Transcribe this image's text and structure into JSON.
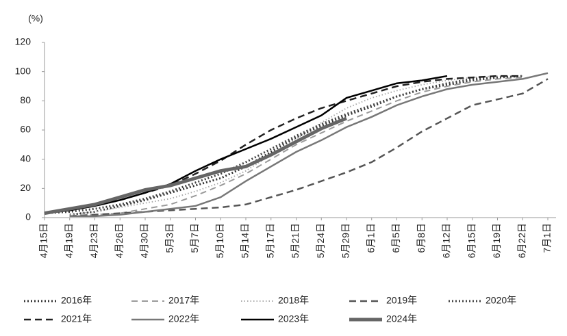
{
  "chart_data": {
    "type": "line",
    "y_label": "(%)",
    "categories": [
      "4月15日",
      "4月19日",
      "4月23日",
      "4月26日",
      "4月30日",
      "5月3日",
      "5月7日",
      "5月10日",
      "5月14日",
      "5月17日",
      "5月21日",
      "5月24日",
      "5月29日",
      "6月1日",
      "6月5日",
      "6月8日",
      "6月12日",
      "6月15日",
      "6月19日",
      "6月22日",
      "7月1日"
    ],
    "ylim": [
      0,
      120
    ],
    "yticks": [
      0,
      20,
      40,
      60,
      80,
      100,
      120
    ],
    "series": [
      {
        "name": "2016年",
        "color": "#333333",
        "dash": "2 3",
        "width": 3,
        "values": [
          null,
          2,
          4,
          8,
          12,
          17,
          22,
          27,
          35,
          45,
          55,
          63,
          70,
          76,
          83,
          88,
          91,
          94,
          96,
          null,
          null
        ]
      },
      {
        "name": "2017年",
        "color": "#9a9a9a",
        "dash": "9 6",
        "width": 2,
        "values": [
          null,
          1,
          2,
          3,
          6,
          9,
          15,
          22,
          30,
          40,
          50,
          58,
          66,
          73,
          80,
          86,
          90,
          93,
          95,
          96,
          null
        ]
      },
      {
        "name": "2018年",
        "color": "#aaaaaa",
        "dash": "1.5 3",
        "width": 2,
        "values": [
          null,
          2,
          4,
          7,
          10,
          13,
          18,
          24,
          32,
          43,
          54,
          65,
          75,
          82,
          87,
          91,
          94,
          96,
          97,
          null,
          null
        ]
      },
      {
        "name": "2019年",
        "color": "#555555",
        "dash": "10 6",
        "width": 2.5,
        "values": [
          null,
          1,
          2,
          3,
          4,
          5,
          6,
          7,
          9,
          14,
          19,
          25,
          31,
          38,
          48,
          59,
          68,
          77,
          81,
          85,
          95
        ]
      },
      {
        "name": "2020年",
        "color": "#444444",
        "dash": "2 3",
        "width": 3,
        "values": [
          3,
          4,
          6,
          9,
          13,
          18,
          24,
          30,
          38,
          47,
          56,
          64,
          71,
          77,
          83,
          88,
          92,
          95,
          96,
          97,
          null
        ]
      },
      {
        "name": "2021年",
        "color": "#222222",
        "dash": "10 6",
        "width": 2.5,
        "values": [
          3,
          5,
          8,
          12,
          17,
          22,
          30,
          39,
          50,
          60,
          68,
          75,
          80,
          85,
          90,
          93,
          95,
          96,
          97,
          97,
          null
        ]
      },
      {
        "name": "2022年",
        "color": "#777777",
        "dash": "none",
        "width": 2.5,
        "values": [
          null,
          1,
          1,
          2,
          4,
          6,
          8,
          14,
          25,
          35,
          45,
          53,
          62,
          69,
          77,
          83,
          88,
          91,
          93,
          95,
          99
        ]
      },
      {
        "name": "2023年",
        "color": "#000000",
        "dash": "none",
        "width": 2.5,
        "values": [
          3,
          5,
          8,
          12,
          17,
          23,
          32,
          40,
          47,
          54,
          62,
          70,
          82,
          87,
          92,
          94,
          97,
          null,
          null,
          null,
          null
        ]
      },
      {
        "name": "2024年",
        "color": "#666666",
        "dash": "none",
        "width": 5,
        "values": [
          3,
          6,
          9,
          14,
          19,
          22,
          27,
          32,
          35,
          43,
          52,
          61,
          68,
          null,
          null,
          null,
          null,
          null,
          null,
          null,
          null
        ]
      }
    ]
  }
}
